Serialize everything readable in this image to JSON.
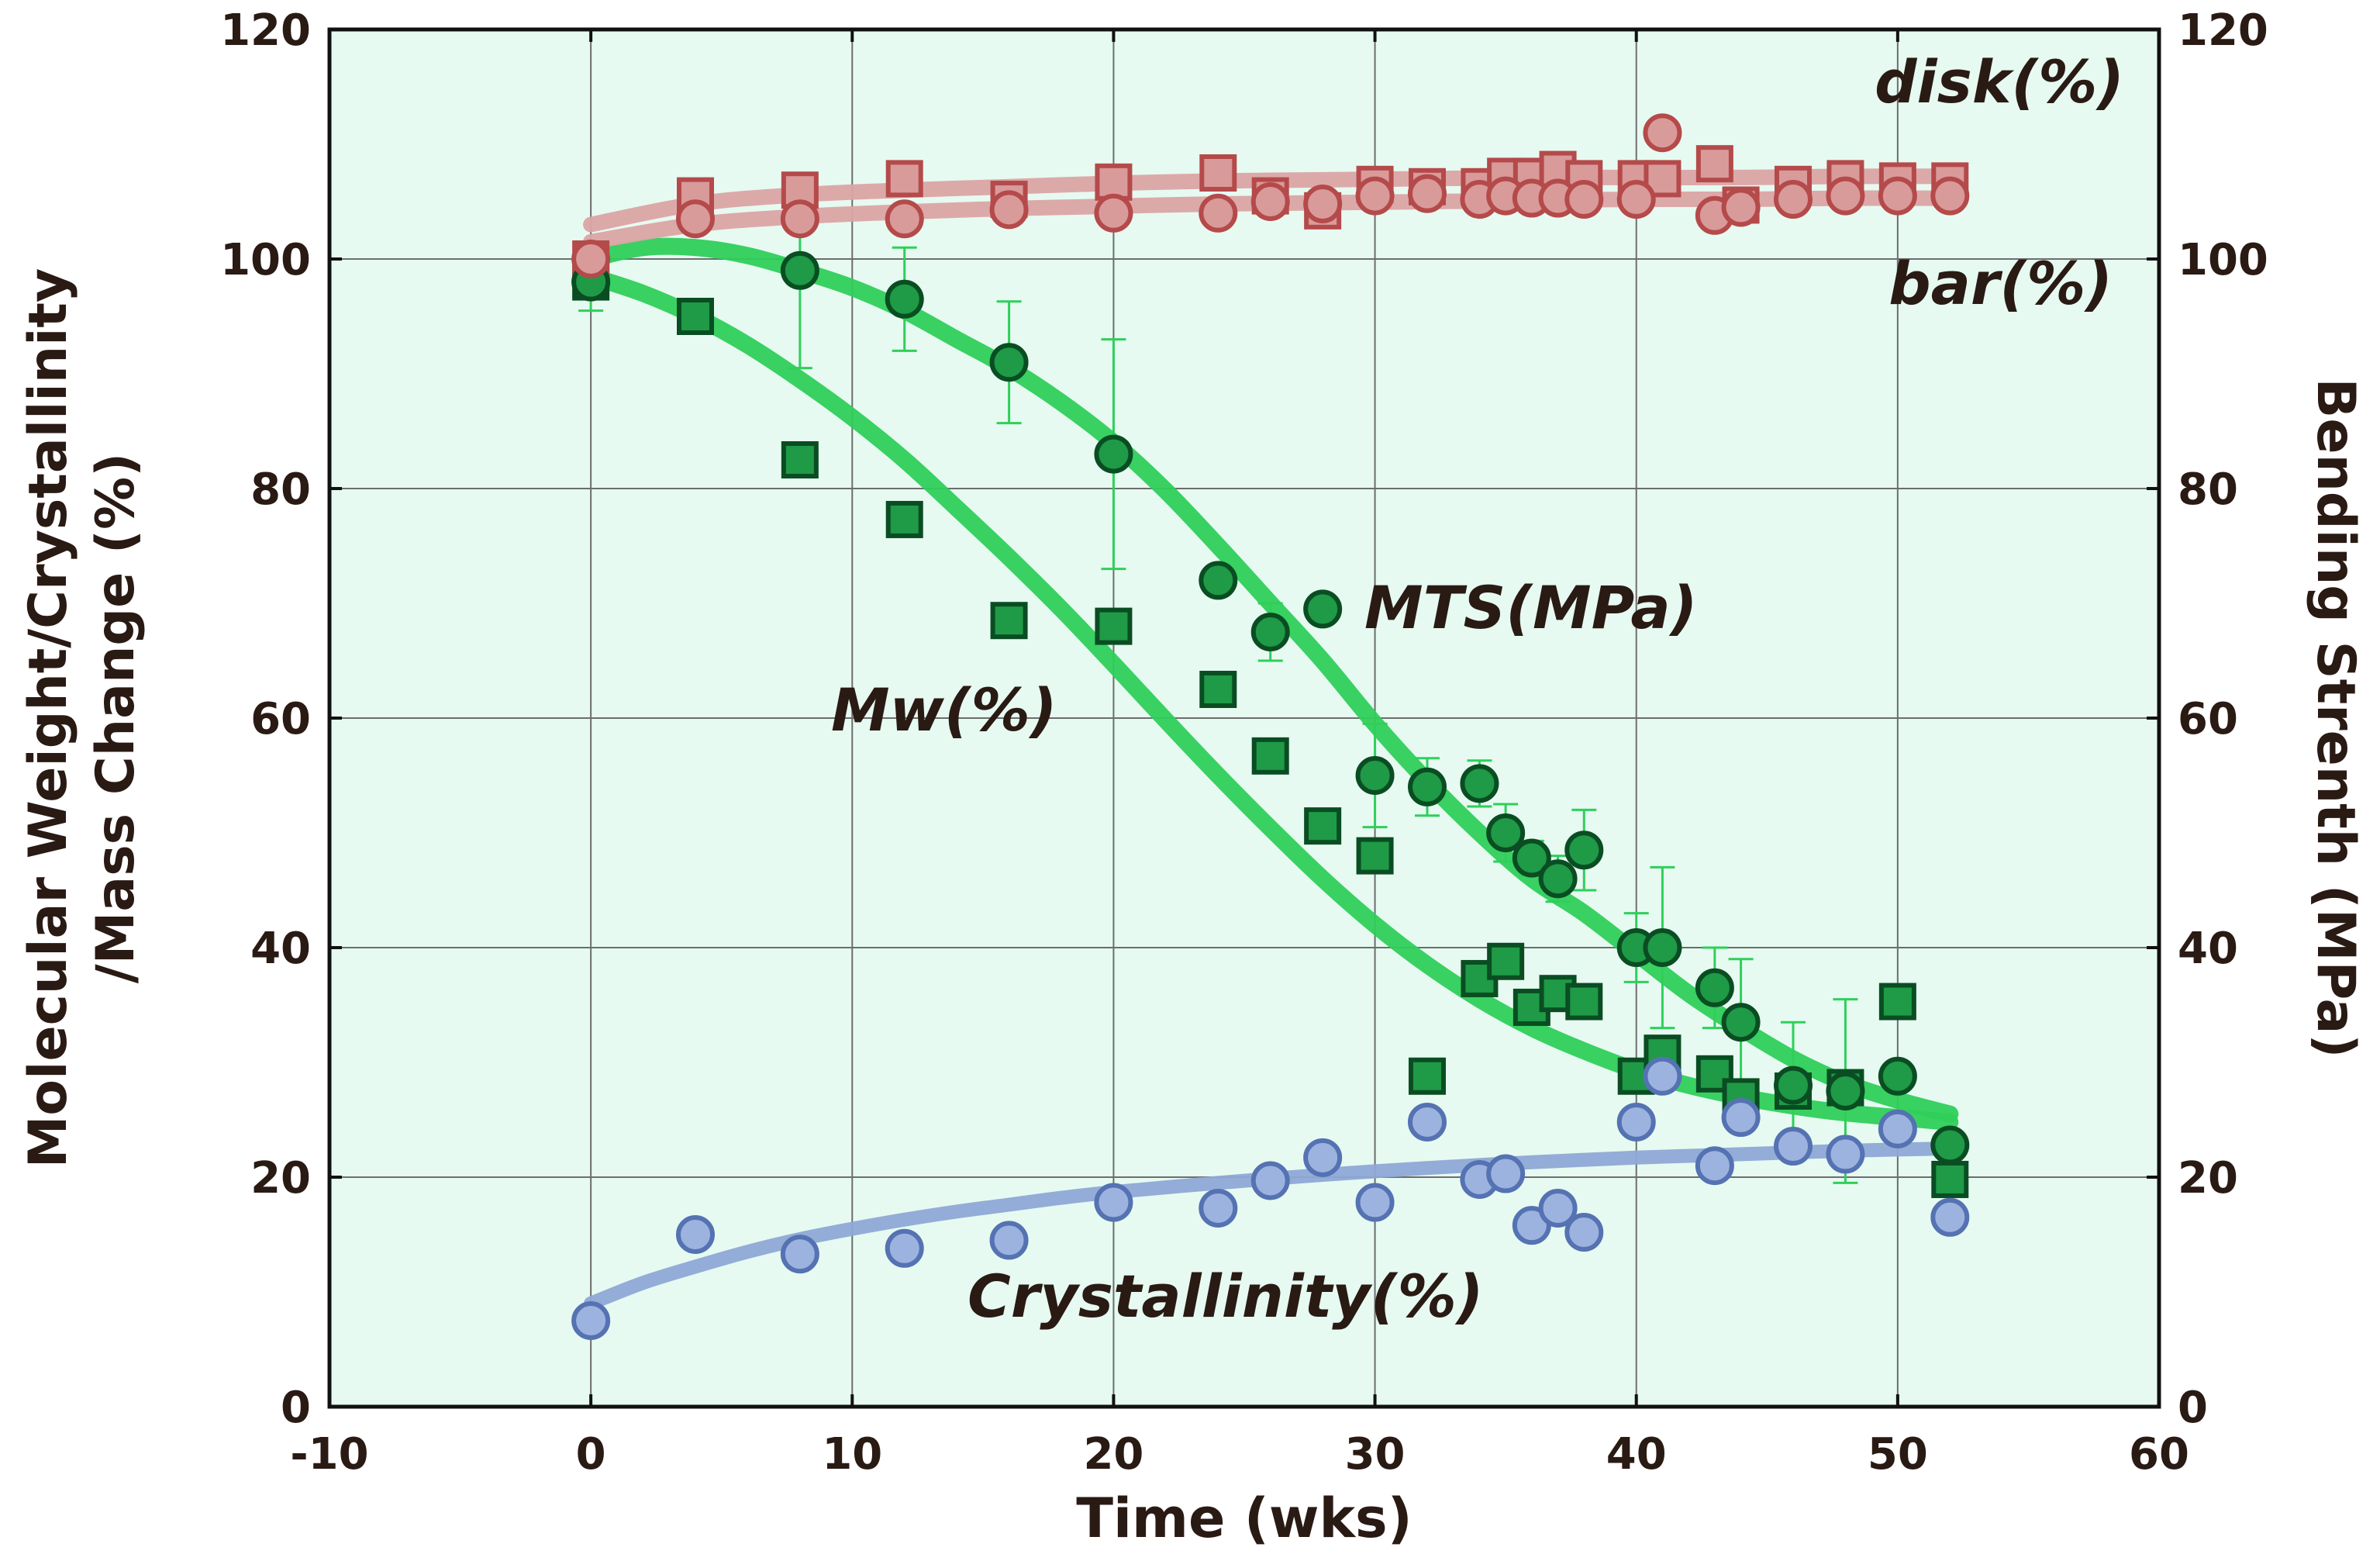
{
  "chart_data": {
    "type": "scatter",
    "xlabel": "Time (wks)",
    "ylabel_left_line1": "Molecular Weight/Crystallinity",
    "ylabel_left_line2": "/Mass Change (%)",
    "ylabel_right": "Bending Strenth (MPa)",
    "xlim": [
      -10,
      60
    ],
    "ylim": [
      0,
      120
    ],
    "xticks": [
      -10,
      0,
      10,
      20,
      30,
      40,
      50,
      60
    ],
    "yticks": [
      0,
      20,
      40,
      60,
      80,
      100,
      120
    ],
    "grid": true,
    "colors": {
      "plot_background": "#e6faf1",
      "green_marker": "#1f9a47",
      "green_edge": "#0a4d22",
      "green_fit": "#2fcf5a",
      "red_marker": "#d99a9a",
      "red_edge": "#b54a4a",
      "red_fit": "#dba4a4",
      "blue_marker": "#9db3df",
      "blue_edge": "#5572b2",
      "blue_fit": "#8ea9d6",
      "text": "#2a1a14"
    },
    "series": [
      {
        "name": "MTS(MPa)",
        "marker": "circle",
        "color_key": "green",
        "points": [
          {
            "x": 0,
            "y": 98,
            "err": 2.5
          },
          {
            "x": 8,
            "y": 99,
            "err": 8.5
          },
          {
            "x": 12,
            "y": 96.5,
            "err": 4.5
          },
          {
            "x": 16,
            "y": 91,
            "err": 5.3
          },
          {
            "x": 20,
            "y": 83,
            "err": 10
          },
          {
            "x": 24,
            "y": 72,
            "err": 0
          },
          {
            "x": 26,
            "y": 67.5,
            "err": 2.5
          },
          {
            "x": 28,
            "y": 69.5,
            "err": 0
          },
          {
            "x": 30,
            "y": 55,
            "err": 4.5
          },
          {
            "x": 32,
            "y": 54,
            "err": 2.5
          },
          {
            "x": 34,
            "y": 54.3,
            "err": 2
          },
          {
            "x": 35,
            "y": 50,
            "err": 2.5
          },
          {
            "x": 36,
            "y": 47.8,
            "err": 1.5
          },
          {
            "x": 37,
            "y": 46,
            "err": 2
          },
          {
            "x": 38,
            "y": 48.5,
            "err": 3.5
          },
          {
            "x": 40,
            "y": 40,
            "err": 3
          },
          {
            "x": 41,
            "y": 40,
            "err": 7
          },
          {
            "x": 43,
            "y": 36.5,
            "err": 3.5
          },
          {
            "x": 44,
            "y": 33.5,
            "err": 5.5
          },
          {
            "x": 46,
            "y": 28,
            "err": 5.5
          },
          {
            "x": 48,
            "y": 27.5,
            "err": 8
          },
          {
            "x": 50,
            "y": 28.8,
            "err": 0
          },
          {
            "x": 52,
            "y": 22.8,
            "err": 0
          }
        ]
      },
      {
        "name": "Mw(%)",
        "marker": "square",
        "color_key": "green",
        "points": [
          {
            "x": 0,
            "y": 98
          },
          {
            "x": 4,
            "y": 95
          },
          {
            "x": 8,
            "y": 82.5
          },
          {
            "x": 12,
            "y": 77.3
          },
          {
            "x": 16,
            "y": 68.5
          },
          {
            "x": 20,
            "y": 68
          },
          {
            "x": 24,
            "y": 62.5
          },
          {
            "x": 26,
            "y": 56.7
          },
          {
            "x": 28,
            "y": 50.6
          },
          {
            "x": 30,
            "y": 48
          },
          {
            "x": 32,
            "y": 28.8
          },
          {
            "x": 34,
            "y": 37.3
          },
          {
            "x": 35,
            "y": 38.8
          },
          {
            "x": 36,
            "y": 34.8
          },
          {
            "x": 37,
            "y": 36
          },
          {
            "x": 38,
            "y": 35.3
          },
          {
            "x": 40,
            "y": 28.8
          },
          {
            "x": 41,
            "y": 30.8
          },
          {
            "x": 43,
            "y": 29
          },
          {
            "x": 44,
            "y": 27
          },
          {
            "x": 46,
            "y": 27.5
          },
          {
            "x": 48,
            "y": 27.8
          },
          {
            "x": 50,
            "y": 35.3
          },
          {
            "x": 52,
            "y": 19.8
          }
        ]
      },
      {
        "name": "disk(%)",
        "marker": "square",
        "color_key": "red",
        "points": [
          {
            "x": 0,
            "y": 100
          },
          {
            "x": 4,
            "y": 105.5
          },
          {
            "x": 8,
            "y": 106
          },
          {
            "x": 12,
            "y": 107
          },
          {
            "x": 16,
            "y": 105.2
          },
          {
            "x": 20,
            "y": 106.7
          },
          {
            "x": 24,
            "y": 107.5
          },
          {
            "x": 26,
            "y": 105.5
          },
          {
            "x": 28,
            "y": 104.2
          },
          {
            "x": 30,
            "y": 106.5
          },
          {
            "x": 32,
            "y": 106.3
          },
          {
            "x": 34,
            "y": 106.3
          },
          {
            "x": 35,
            "y": 107.2
          },
          {
            "x": 36,
            "y": 107.2
          },
          {
            "x": 37,
            "y": 107.8
          },
          {
            "x": 38,
            "y": 107
          },
          {
            "x": 40,
            "y": 107
          },
          {
            "x": 41,
            "y": 107
          },
          {
            "x": 43,
            "y": 108.3
          },
          {
            "x": 44,
            "y": 104.7
          },
          {
            "x": 46,
            "y": 106.5
          },
          {
            "x": 48,
            "y": 107
          },
          {
            "x": 50,
            "y": 106.8
          },
          {
            "x": 52,
            "y": 106.8
          }
        ]
      },
      {
        "name": "bar(%)",
        "marker": "circle",
        "color_key": "red",
        "points": [
          {
            "x": 0,
            "y": 100
          },
          {
            "x": 4,
            "y": 103.5
          },
          {
            "x": 8,
            "y": 103.5
          },
          {
            "x": 12,
            "y": 103.5
          },
          {
            "x": 16,
            "y": 104.3
          },
          {
            "x": 20,
            "y": 104
          },
          {
            "x": 24,
            "y": 104
          },
          {
            "x": 26,
            "y": 105
          },
          {
            "x": 28,
            "y": 104.8
          },
          {
            "x": 30,
            "y": 105.5
          },
          {
            "x": 32,
            "y": 105.7
          },
          {
            "x": 34,
            "y": 105.2
          },
          {
            "x": 35,
            "y": 105.5
          },
          {
            "x": 36,
            "y": 105.3
          },
          {
            "x": 37,
            "y": 105.3
          },
          {
            "x": 38,
            "y": 105.2
          },
          {
            "x": 40,
            "y": 105.2
          },
          {
            "x": 41,
            "y": 111
          },
          {
            "x": 43,
            "y": 103.8
          },
          {
            "x": 44,
            "y": 104.5
          },
          {
            "x": 46,
            "y": 105.2
          },
          {
            "x": 48,
            "y": 105.5
          },
          {
            "x": 50,
            "y": 105.5
          },
          {
            "x": 52,
            "y": 105.5
          }
        ]
      },
      {
        "name": "Crystallinity(%)",
        "marker": "circle",
        "color_key": "blue",
        "points": [
          {
            "x": 0,
            "y": 7.5
          },
          {
            "x": 4,
            "y": 15
          },
          {
            "x": 8,
            "y": 13.3
          },
          {
            "x": 12,
            "y": 13.8
          },
          {
            "x": 16,
            "y": 14.5
          },
          {
            "x": 20,
            "y": 17.8
          },
          {
            "x": 24,
            "y": 17.3
          },
          {
            "x": 26,
            "y": 19.7
          },
          {
            "x": 28,
            "y": 21.7
          },
          {
            "x": 30,
            "y": 17.8
          },
          {
            "x": 32,
            "y": 24.8
          },
          {
            "x": 34,
            "y": 19.8
          },
          {
            "x": 35,
            "y": 20.3
          },
          {
            "x": 36,
            "y": 15.8
          },
          {
            "x": 37,
            "y": 17.3
          },
          {
            "x": 38,
            "y": 15.2
          },
          {
            "x": 40,
            "y": 24.8
          },
          {
            "x": 41,
            "y": 28.8
          },
          {
            "x": 43,
            "y": 21
          },
          {
            "x": 44,
            "y": 25.2
          },
          {
            "x": 46,
            "y": 22.7
          },
          {
            "x": 48,
            "y": 22
          },
          {
            "x": 50,
            "y": 24.2
          },
          {
            "x": 52,
            "y": 16.5
          }
        ]
      }
    ],
    "fit_curves": [
      {
        "name": "MTS fit",
        "color_key": "green",
        "points": [
          [
            0,
            100
          ],
          [
            2,
            101
          ],
          [
            4,
            101
          ],
          [
            6,
            100.3
          ],
          [
            8,
            99
          ],
          [
            10,
            97.5
          ],
          [
            12,
            95.5
          ],
          [
            14,
            93
          ],
          [
            16,
            90.5
          ],
          [
            18,
            87.5
          ],
          [
            20,
            84
          ],
          [
            22,
            79.8
          ],
          [
            24,
            75
          ],
          [
            26,
            70
          ],
          [
            28,
            65
          ],
          [
            30,
            59.5
          ],
          [
            32,
            54.5
          ],
          [
            34,
            50
          ],
          [
            36,
            46
          ],
          [
            38,
            43
          ],
          [
            40,
            39.5
          ],
          [
            42,
            36
          ],
          [
            44,
            33
          ],
          [
            46,
            30.3
          ],
          [
            48,
            28.2
          ],
          [
            50,
            26.7
          ],
          [
            52,
            25.5
          ]
        ]
      },
      {
        "name": "Mw fit",
        "color_key": "green",
        "points": [
          [
            0,
            98.5
          ],
          [
            2,
            97
          ],
          [
            4,
            95
          ],
          [
            6,
            92.5
          ],
          [
            8,
            89.5
          ],
          [
            10,
            86.2
          ],
          [
            12,
            82.5
          ],
          [
            14,
            78.3
          ],
          [
            16,
            74
          ],
          [
            18,
            69.5
          ],
          [
            20,
            64.7
          ],
          [
            22,
            59.8
          ],
          [
            24,
            55
          ],
          [
            26,
            50.4
          ],
          [
            28,
            46
          ],
          [
            30,
            42
          ],
          [
            32,
            38.5
          ],
          [
            34,
            35.5
          ],
          [
            36,
            33
          ],
          [
            38,
            31
          ],
          [
            40,
            29.3
          ],
          [
            42,
            28
          ],
          [
            44,
            27
          ],
          [
            46,
            26.2
          ],
          [
            48,
            25.6
          ],
          [
            50,
            25.2
          ],
          [
            52,
            24.8
          ]
        ]
      },
      {
        "name": "disk fit",
        "color_key": "red",
        "points": [
          [
            0,
            103
          ],
          [
            4,
            104.8
          ],
          [
            8,
            105.6
          ],
          [
            12,
            106
          ],
          [
            16,
            106.3
          ],
          [
            20,
            106.6
          ],
          [
            24,
            106.8
          ],
          [
            28,
            106.9
          ],
          [
            32,
            107
          ],
          [
            36,
            107.1
          ],
          [
            40,
            107.1
          ],
          [
            44,
            107.1
          ],
          [
            48,
            107.2
          ],
          [
            52,
            107.2
          ]
        ]
      },
      {
        "name": "bar fit",
        "color_key": "red",
        "points": [
          [
            0,
            101.5
          ],
          [
            4,
            103
          ],
          [
            8,
            103.7
          ],
          [
            12,
            104.1
          ],
          [
            16,
            104.4
          ],
          [
            20,
            104.6
          ],
          [
            24,
            104.8
          ],
          [
            28,
            104.9
          ],
          [
            32,
            105
          ],
          [
            36,
            105.1
          ],
          [
            40,
            105.2
          ],
          [
            44,
            105.2
          ],
          [
            48,
            105.3
          ],
          [
            52,
            105.3
          ]
        ]
      },
      {
        "name": "Crystallinity fit",
        "color_key": "blue",
        "points": [
          [
            0,
            9
          ],
          [
            2,
            10.8
          ],
          [
            4,
            12.2
          ],
          [
            6,
            13.5
          ],
          [
            8,
            14.6
          ],
          [
            10,
            15.5
          ],
          [
            12,
            16.3
          ],
          [
            14,
            17
          ],
          [
            16,
            17.6
          ],
          [
            18,
            18.2
          ],
          [
            20,
            18.7
          ],
          [
            24,
            19.5
          ],
          [
            28,
            20.2
          ],
          [
            32,
            20.8
          ],
          [
            36,
            21.3
          ],
          [
            40,
            21.7
          ],
          [
            44,
            22
          ],
          [
            48,
            22.3
          ],
          [
            52,
            22.5
          ]
        ]
      }
    ],
    "annotations": {
      "disk": "disk(%)",
      "bar": "bar(%)",
      "mts": "MTS(MPa)",
      "mw": "Mw(%)",
      "crystallinity": "Crystallinity(%)"
    }
  }
}
